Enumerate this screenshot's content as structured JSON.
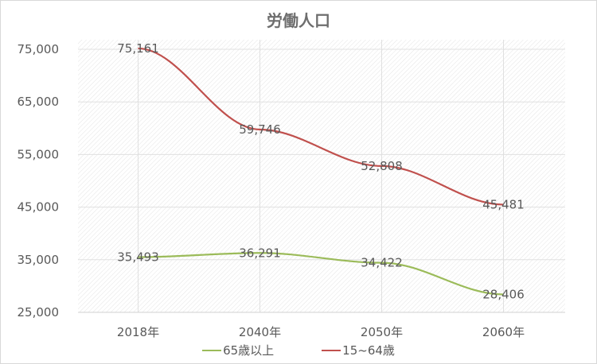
{
  "chart_data": {
    "type": "line",
    "title": "労働人口",
    "xlabel": "",
    "ylabel": "",
    "categories": [
      "2018年",
      "2040年",
      "2050年",
      "2060年"
    ],
    "series": [
      {
        "name": "65歳以上",
        "color": "#9bbb59",
        "values": [
          35493,
          36291,
          34422,
          28406
        ],
        "labels": [
          "35,493",
          "36,291",
          "34,422",
          "28,406"
        ]
      },
      {
        "name": "15~64歳",
        "color": "#c0504d",
        "values": [
          75161,
          59746,
          52808,
          45481
        ],
        "labels": [
          "75,161",
          "59,746",
          "52,808",
          "45,481"
        ]
      }
    ],
    "ylim": [
      25000,
      75000
    ],
    "yticks": [
      25000,
      35000,
      45000,
      55000,
      65000,
      75000
    ],
    "ytick_labels": [
      "25,000",
      "35,000",
      "45,000",
      "55,000",
      "65,000",
      "75,000"
    ],
    "grid": true,
    "legend_position": "bottom"
  },
  "legend": {
    "items": [
      {
        "label": "65歳以上",
        "color": "#9bbb59"
      },
      {
        "label": "15~64歳",
        "color": "#c0504d"
      }
    ]
  }
}
